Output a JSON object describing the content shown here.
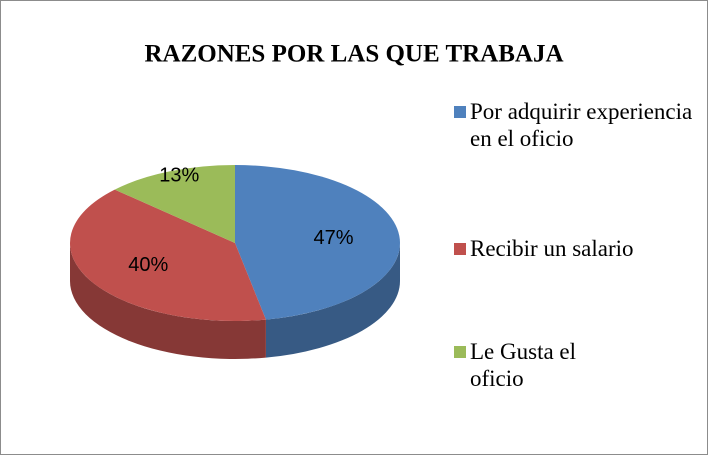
{
  "chart_data": {
    "type": "pie",
    "title": "RAZONES POR LAS QUE TRABAJA",
    "categories": [
      "Por adquirir experiencia en el oficio",
      "Recibir un salario",
      "Le Gusta el oficio"
    ],
    "values": [
      47,
      40,
      13
    ],
    "value_labels": [
      "47%",
      "40%",
      "13%"
    ],
    "colors": [
      "#4f81bd",
      "#c0504d",
      "#9bbb59"
    ],
    "legend": "right"
  }
}
